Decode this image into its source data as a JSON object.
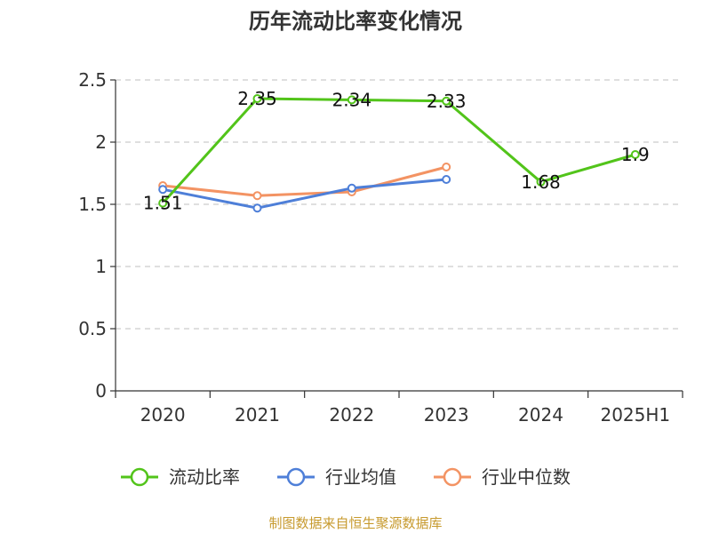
{
  "chart_data": {
    "type": "line",
    "title": "历年流动比率变化情况",
    "xlabel": "",
    "ylabel": "",
    "categories": [
      "2020",
      "2021",
      "2022",
      "2023",
      "2024",
      "2025H1"
    ],
    "ylim": [
      0,
      2.5
    ],
    "yticks": [
      0,
      0.5,
      1,
      1.5,
      2,
      2.5
    ],
    "ytick_labels": [
      "0",
      "0.5",
      "1",
      "1.5",
      "2",
      "2.5"
    ],
    "grid": "horizontal dashed",
    "legend_position": "bottom",
    "series": [
      {
        "name": "流动比率",
        "color": "#52c41a",
        "values": [
          1.51,
          2.35,
          2.34,
          2.33,
          1.68,
          1.9
        ],
        "data_labels": [
          "1.51",
          "2.35",
          "2.34",
          "2.33",
          "1.68",
          "1.9"
        ]
      },
      {
        "name": "行业均值",
        "color": "#4e7fd8",
        "values": [
          1.62,
          1.47,
          1.63,
          1.7,
          null,
          null
        ]
      },
      {
        "name": "行业中位数",
        "color": "#f39363",
        "values": [
          1.65,
          1.57,
          1.6,
          1.8,
          null,
          null
        ]
      }
    ]
  },
  "source_note": "制图数据来自恒生聚源数据库"
}
